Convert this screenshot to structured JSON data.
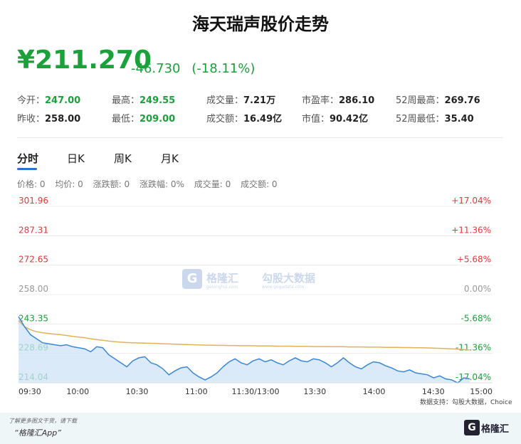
{
  "title": "海天瑞声股价走势",
  "price": "¥211.270",
  "change": "-46.730",
  "change_pct": "(-18.11%)",
  "stats": [
    {
      "label": "今开：",
      "value": "247.00",
      "green": true
    },
    {
      "label": "最高：",
      "value": "249.55",
      "green": true
    },
    {
      "label": "成交量：",
      "value": "7.21万",
      "green": false
    },
    {
      "label": "市盈率：",
      "value": "286.10",
      "green": false
    },
    {
      "label": "52周最高：",
      "value": "269.76",
      "green": false
    },
    {
      "label": "昨收：",
      "value": "258.00",
      "green": false
    },
    {
      "label": "最低：",
      "value": "209.00",
      "green": true
    },
    {
      "label": "成交额：",
      "value": "16.49亿",
      "green": false
    },
    {
      "label": "市值：",
      "value": "90.42亿",
      "green": false
    },
    {
      "label": "52周最低：",
      "value": "35.40",
      "green": false
    }
  ],
  "tabs": [
    "分时",
    "日K",
    "周K",
    "月K"
  ],
  "info": [
    "价格: 0",
    "均价: 0",
    "涨跌额: 0",
    "涨跌幅: 0%",
    "成交量: 0",
    "成交额: 0"
  ],
  "source": "数据支持：勾股大数据，Choice",
  "footer_note": "了解更多图文干货，请下载",
  "footer_app": "“格隆汇App”",
  "logo_text": "格隆汇",
  "watermark": {
    "brand": "格隆汇",
    "brand_sub": "gelonghui.com",
    "partner": "勾股大数据",
    "partner_sub": "www.gogudata.com"
  },
  "colors": {
    "up": "#e03a3a",
    "down": "#1aa13a",
    "neutral": "#999999",
    "price_line": "#3a86d8",
    "avg_line": "#e2b25a",
    "fill": "#cfe3f7"
  },
  "chart_data": {
    "type": "line",
    "title": "",
    "prev_close": 258.0,
    "y_ticks": [
      301.96,
      287.31,
      272.65,
      258.0,
      243.35,
      228.69,
      214.04
    ],
    "pct_ticks": [
      "+17.04%",
      "+11.36%",
      "+5.68%",
      "0.00%",
      "-5.68%",
      "-11.36%",
      "-17.04%"
    ],
    "x_ticks": [
      "09:30",
      "10:00",
      "10:30",
      "11:00",
      "11:30/13:00",
      "13:30",
      "14:00",
      "14:30",
      "15:00"
    ],
    "ylim": [
      214.04,
      301.96
    ],
    "grid": true,
    "series": [
      {
        "values": [
          247.0,
          242.0,
          238.0,
          236.0,
          234.0,
          233.5,
          233.0,
          232.5,
          233.0,
          232.0,
          231.5,
          231.0,
          229.5,
          232.0,
          231.5,
          228.0,
          226.0,
          224.0,
          222.0,
          225.0,
          226.5,
          227.0,
          224.0,
          223.0,
          221.0,
          218.0,
          220.0,
          221.5,
          222.0,
          219.0,
          217.0,
          215.5,
          217.0,
          219.0,
          222.0,
          224.5,
          226.0,
          224.0,
          223.0,
          225.0,
          226.0,
          224.5,
          225.5,
          224.0,
          223.0,
          225.0,
          226.5,
          225.0,
          224.5,
          226.0,
          225.5,
          224.0,
          222.0,
          224.0,
          226.5,
          224.0,
          222.0,
          221.0,
          223.0,
          224.5,
          224.0,
          222.5,
          221.5,
          220.0,
          219.5,
          220.5,
          219.0,
          218.5,
          218.0,
          216.5,
          217.5,
          216.0,
          215.5,
          214.0,
          216.5,
          216.0
        ]
      },
      {
        "values": [
          245.0,
          242.0,
          240.5,
          239.5,
          239.0,
          238.6,
          238.3,
          238.0,
          237.6,
          237.2,
          236.8,
          236.5,
          236.0,
          235.6,
          235.2,
          234.8,
          234.5,
          234.3,
          234.1,
          234.0,
          233.9,
          233.8,
          233.7,
          233.6,
          233.5,
          233.4,
          233.3,
          233.2,
          233.1,
          233.0,
          232.9,
          232.8,
          232.8,
          232.7,
          232.7,
          232.6,
          232.6,
          232.5,
          232.5,
          232.5,
          232.4,
          232.4,
          232.4,
          232.3,
          232.3,
          232.3,
          232.2,
          232.2,
          232.2,
          232.1,
          232.1,
          232.1,
          232.0,
          232.0,
          232.0,
          231.9,
          231.9,
          231.9,
          231.8,
          231.8,
          231.8,
          231.7,
          231.7,
          231.7,
          231.6,
          231.6,
          231.5,
          231.5,
          231.4,
          231.3,
          231.2,
          231.1,
          231.0,
          230.8,
          230.6,
          230.4
        ]
      }
    ]
  }
}
